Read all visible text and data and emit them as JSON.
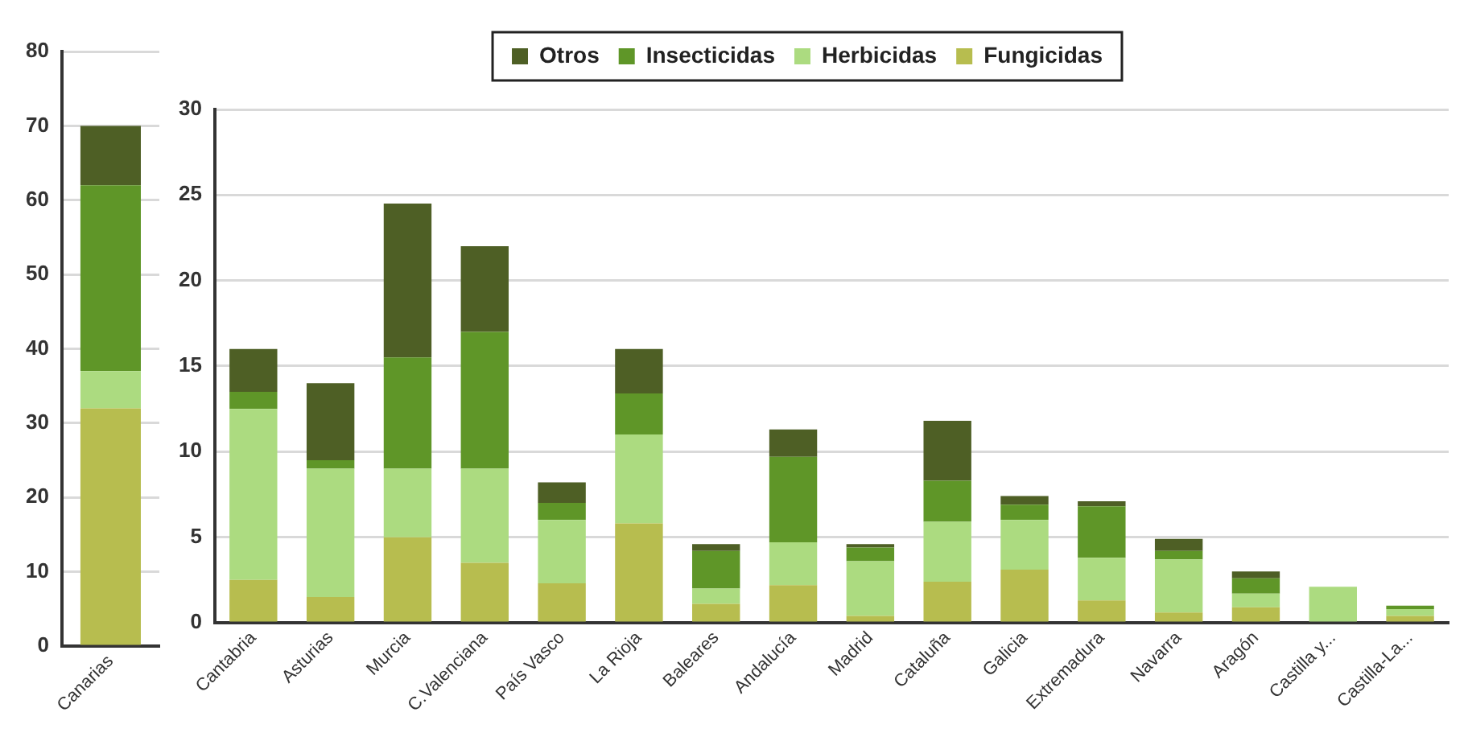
{
  "chart_data": [
    {
      "type": "bar",
      "stacked": true,
      "categories": [
        "Canarias"
      ],
      "ylim": [
        0,
        80
      ],
      "yticks": [
        0,
        10,
        20,
        30,
        40,
        50,
        60,
        70,
        80
      ],
      "grid": "y",
      "series": [
        {
          "color": "#b7bd4f",
          "values": [
            32
          ]
        },
        {
          "color": "#acdb80",
          "values": [
            5
          ]
        },
        {
          "color": "#5f9628",
          "values": [
            25
          ]
        },
        {
          "color": "#4e5f25",
          "values": [
            8
          ]
        }
      ]
    },
    {
      "type": "bar",
      "stacked": true,
      "legend": "top",
      "grid": "y",
      "categories": [
        "Cantabria",
        "Asturias",
        "Murcia",
        "C.Valenciana",
        "País Vasco",
        "La Rioja",
        "Baleares",
        "Andalucía",
        "Madrid",
        "Cataluña",
        "Galicia",
        "Extremadura",
        "Navarra",
        "Aragón",
        "Castilla y...",
        "Castilla-La..."
      ],
      "ylim": [
        0,
        30
      ],
      "yticks": [
        0,
        5,
        10,
        15,
        20,
        25,
        30
      ],
      "series": [
        {
          "name": "Fungicidas",
          "color": "#b7bd4f",
          "values": [
            2.5,
            1.5,
            5,
            3.5,
            2.3,
            5.8,
            1.1,
            2.2,
            0.4,
            2.4,
            3.1,
            1.3,
            0.6,
            0.9,
            0,
            0.4
          ]
        },
        {
          "name": "Herbicidas",
          "color": "#acdb80",
          "values": [
            10,
            7.5,
            4,
            5.5,
            3.7,
            5.2,
            0.9,
            2.5,
            3.2,
            3.5,
            2.9,
            2.5,
            3.1,
            0.8,
            2.1,
            0.4
          ]
        },
        {
          "name": "Insecticidas",
          "color": "#5f9628",
          "values": [
            1,
            0.5,
            6.5,
            8,
            1,
            2.4,
            2.2,
            5,
            0.8,
            2.4,
            0.9,
            3,
            0.5,
            0.9,
            0,
            0.2
          ]
        },
        {
          "name": "Otros",
          "color": "#4e5f25",
          "values": [
            2.5,
            4.5,
            9,
            5,
            1.2,
            2.6,
            0.4,
            1.6,
            0.2,
            3.5,
            0.5,
            0.3,
            0.7,
            0.4,
            0,
            0
          ]
        }
      ]
    }
  ]
}
